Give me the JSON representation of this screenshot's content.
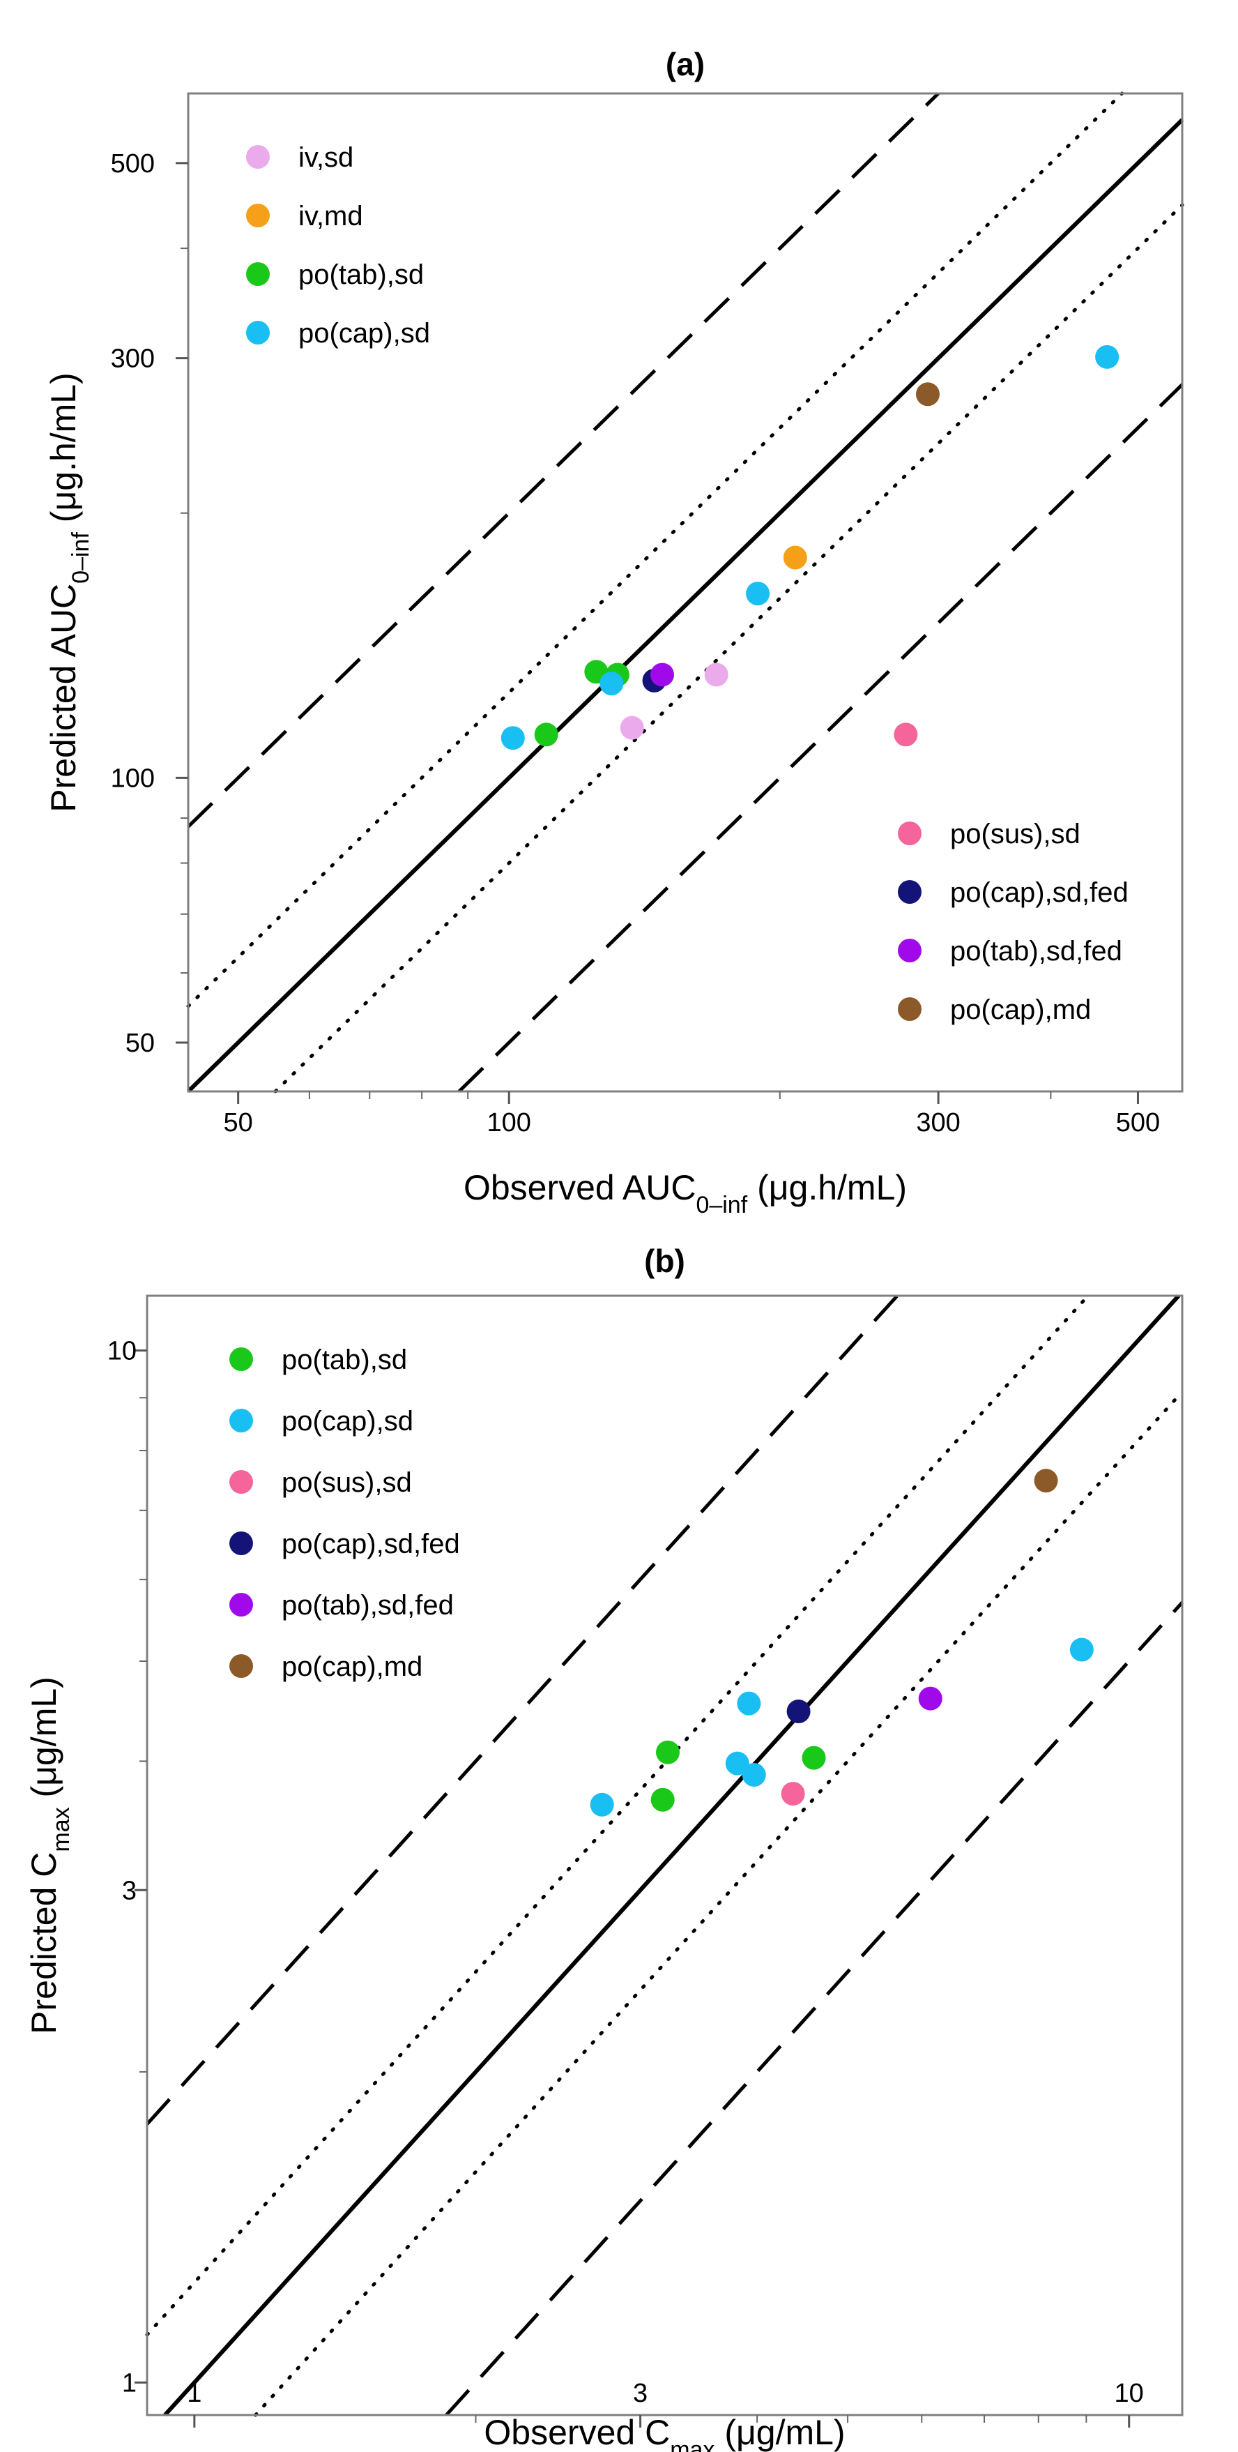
{
  "chart_data": [
    {
      "type": "scatter",
      "panel_label": "(a)",
      "xlabel_main": "Observed AUC",
      "xlabel_sub": "0–inf",
      "xlabel_unit": " (μg.h/mL)",
      "ylabel_main": "Predicted AUC",
      "ylabel_sub": "0–inf",
      "ylabel_unit": " (μg.h/mL)",
      "scale": "log",
      "xlim": [
        44,
        560
      ],
      "ylim": [
        44,
        600
      ],
      "xticks": [
        50,
        100,
        300,
        500
      ],
      "yticks": [
        50,
        100,
        300,
        500
      ],
      "minor_ticks": [
        60,
        70,
        80,
        90,
        200,
        400
      ],
      "reference_lines": [
        {
          "factor": 1,
          "style": "solid"
        },
        {
          "factor": 1.25,
          "style": "dotted"
        },
        {
          "factor": 0.8,
          "style": "dotted"
        },
        {
          "factor": 2,
          "style": "dashed"
        },
        {
          "factor": 0.5,
          "style": "dashed"
        }
      ],
      "legend_top_left": [
        "iv,sd",
        "iv,md",
        "po(tab),sd",
        "po(cap),sd"
      ],
      "legend_bottom_right": [
        "po(sus),sd",
        "po(cap),sd,fed",
        "po(tab),sd,fed",
        "po(cap),md"
      ],
      "series": [
        {
          "name": "iv,sd",
          "color": "#ebaaeb",
          "points": [
            [
              137,
              114
            ],
            [
              170,
              131
            ]
          ]
        },
        {
          "name": "iv,md",
          "color": "#f5a018",
          "points": [
            [
              208,
              178
            ]
          ]
        },
        {
          "name": "po(tab),sd",
          "color": "#19c819",
          "points": [
            [
              110,
              112
            ],
            [
              125,
              132
            ],
            [
              132,
              131
            ]
          ]
        },
        {
          "name": "po(cap),sd",
          "color": "#19bff2",
          "points": [
            [
              101,
              111
            ],
            [
              130,
              128
            ],
            [
              189,
              162
            ],
            [
              462,
              301
            ]
          ]
        },
        {
          "name": "po(sus),sd",
          "color": "#f5649b",
          "points": [
            [
              276,
              112
            ]
          ]
        },
        {
          "name": "po(cap),sd,fed",
          "color": "#141478",
          "points": [
            [
              145,
              129
            ]
          ]
        },
        {
          "name": "po(tab),sd,fed",
          "color": "#a00aeb",
          "points": [
            [
              148,
              131
            ]
          ]
        },
        {
          "name": "po(cap),md",
          "color": "#8c5a28",
          "points": [
            [
              292,
              273
            ]
          ]
        }
      ]
    },
    {
      "type": "scatter",
      "panel_label": "(b)",
      "xlabel_main": "Observed C",
      "xlabel_sub": "max",
      "xlabel_unit": " (μg/mL)",
      "ylabel_main": "Predicted C",
      "ylabel_sub": "max",
      "ylabel_unit": " (μg/mL)",
      "scale": "log",
      "xlim": [
        0.89,
        11.4
      ],
      "ylim": [
        0.93,
        11.3
      ],
      "xticks": [
        1,
        3,
        10
      ],
      "yticks": [
        1,
        3,
        10
      ],
      "minor_ticks": [
        2,
        4,
        5,
        6,
        7,
        8,
        9
      ],
      "reference_lines": [
        {
          "factor": 1,
          "style": "solid"
        },
        {
          "factor": 1.25,
          "style": "dotted"
        },
        {
          "factor": 0.8,
          "style": "dotted"
        },
        {
          "factor": 2,
          "style": "dashed"
        },
        {
          "factor": 0.5,
          "style": "dashed"
        }
      ],
      "legend_top_left": [
        "po(tab),sd",
        "po(cap),sd",
        "po(sus),sd",
        "po(cap),sd,fed",
        "po(tab),sd,fed",
        "po(cap),md"
      ],
      "legend_bottom_right": [],
      "series": [
        {
          "name": "po(tab),sd",
          "color": "#19c819",
          "points": [
            [
              3.21,
              4.08
            ],
            [
              3.17,
              3.67
            ],
            [
              4.6,
              4.03
            ]
          ]
        },
        {
          "name": "po(cap),sd",
          "color": "#19bff2",
          "points": [
            [
              2.73,
              3.63
            ],
            [
              3.81,
              3.98
            ],
            [
              3.97,
              3.88
            ],
            [
              3.92,
              4.55
            ],
            [
              8.9,
              5.13
            ]
          ]
        },
        {
          "name": "po(sus),sd",
          "color": "#f5649b",
          "points": [
            [
              4.37,
              3.72
            ]
          ]
        },
        {
          "name": "po(cap),sd,fed",
          "color": "#141478",
          "points": [
            [
              4.43,
              4.47
            ]
          ]
        },
        {
          "name": "po(tab),sd,fed",
          "color": "#a00aeb",
          "points": [
            [
              6.13,
              4.6
            ]
          ]
        },
        {
          "name": "po(cap),md",
          "color": "#8c5a28",
          "points": [
            [
              8.15,
              7.48
            ]
          ]
        }
      ]
    }
  ]
}
